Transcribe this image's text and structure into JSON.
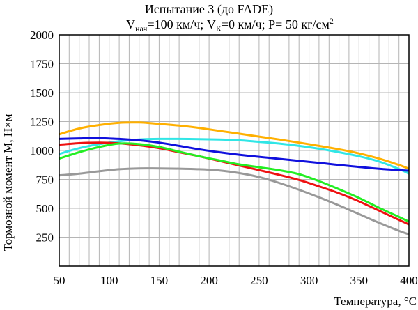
{
  "chart_data": {
    "type": "line",
    "title": "Испытание 3 (до FADE)",
    "subtitle": {
      "v_start_symbol": "V",
      "v_start_sub": "нач",
      "v_start_value": "=100 км/ч; ",
      "v_end_symbol": "V",
      "v_end_sub": "К",
      "v_end_value": "=0 км/ч; P= 50 кг/см",
      "pressure_sup": "2"
    },
    "xlabel": "Температура, °С",
    "ylabel": "Тормозной момент М, Н×м",
    "xlim": [
      50,
      400
    ],
    "ylim": [
      0,
      2000
    ],
    "x_ticks": [
      50,
      100,
      150,
      200,
      250,
      300,
      350,
      400
    ],
    "y_ticks": [
      250,
      500,
      750,
      1000,
      1250,
      1500,
      1750,
      2000
    ],
    "x_grid_step": 10,
    "grid": true,
    "series": [
      {
        "name": "orange",
        "color": "#ffb000",
        "points": [
          [
            50,
            1140
          ],
          [
            70,
            1190
          ],
          [
            90,
            1220
          ],
          [
            110,
            1240
          ],
          [
            130,
            1242
          ],
          [
            150,
            1230
          ],
          [
            170,
            1215
          ],
          [
            190,
            1195
          ],
          [
            210,
            1170
          ],
          [
            230,
            1145
          ],
          [
            250,
            1120
          ],
          [
            270,
            1095
          ],
          [
            290,
            1068
          ],
          [
            310,
            1040
          ],
          [
            330,
            1010
          ],
          [
            350,
            975
          ],
          [
            370,
            930
          ],
          [
            390,
            875
          ],
          [
            400,
            842
          ]
        ]
      },
      {
        "name": "cyan",
        "color": "#30e6e6",
        "points": [
          [
            50,
            970
          ],
          [
            70,
            1020
          ],
          [
            90,
            1055
          ],
          [
            110,
            1080
          ],
          [
            130,
            1095
          ],
          [
            150,
            1100
          ],
          [
            170,
            1100
          ],
          [
            190,
            1098
          ],
          [
            210,
            1095
          ],
          [
            230,
            1088
          ],
          [
            250,
            1075
          ],
          [
            270,
            1060
          ],
          [
            290,
            1040
          ],
          [
            310,
            1015
          ],
          [
            330,
            985
          ],
          [
            350,
            950
          ],
          [
            370,
            905
          ],
          [
            390,
            840
          ],
          [
            400,
            800
          ]
        ]
      },
      {
        "name": "blue",
        "color": "#1010dd",
        "points": [
          [
            50,
            1100
          ],
          [
            70,
            1105
          ],
          [
            90,
            1107
          ],
          [
            110,
            1100
          ],
          [
            130,
            1088
          ],
          [
            150,
            1068
          ],
          [
            170,
            1040
          ],
          [
            190,
            1010
          ],
          [
            210,
            985
          ],
          [
            230,
            963
          ],
          [
            250,
            945
          ],
          [
            270,
            928
          ],
          [
            290,
            910
          ],
          [
            310,
            893
          ],
          [
            330,
            875
          ],
          [
            350,
            858
          ],
          [
            370,
            842
          ],
          [
            390,
            830
          ],
          [
            400,
            825
          ]
        ]
      },
      {
        "name": "red",
        "color": "#ee1111",
        "points": [
          [
            50,
            1050
          ],
          [
            70,
            1063
          ],
          [
            90,
            1068
          ],
          [
            110,
            1062
          ],
          [
            130,
            1045
          ],
          [
            150,
            1020
          ],
          [
            170,
            985
          ],
          [
            190,
            950
          ],
          [
            210,
            910
          ],
          [
            230,
            870
          ],
          [
            250,
            830
          ],
          [
            270,
            790
          ],
          [
            290,
            745
          ],
          [
            310,
            690
          ],
          [
            330,
            630
          ],
          [
            350,
            560
          ],
          [
            370,
            480
          ],
          [
            390,
            400
          ],
          [
            400,
            360
          ]
        ]
      },
      {
        "name": "green",
        "color": "#22ee22",
        "points": [
          [
            50,
            930
          ],
          [
            70,
            985
          ],
          [
            90,
            1030
          ],
          [
            110,
            1060
          ],
          [
            130,
            1055
          ],
          [
            150,
            1030
          ],
          [
            170,
            990
          ],
          [
            190,
            950
          ],
          [
            210,
            915
          ],
          [
            230,
            880
          ],
          [
            250,
            855
          ],
          [
            270,
            830
          ],
          [
            290,
            795
          ],
          [
            310,
            735
          ],
          [
            330,
            665
          ],
          [
            350,
            590
          ],
          [
            370,
            505
          ],
          [
            390,
            425
          ],
          [
            400,
            385
          ]
        ]
      },
      {
        "name": "gray",
        "color": "#999999",
        "points": [
          [
            50,
            785
          ],
          [
            70,
            800
          ],
          [
            90,
            820
          ],
          [
            110,
            838
          ],
          [
            130,
            845
          ],
          [
            150,
            845
          ],
          [
            170,
            843
          ],
          [
            190,
            838
          ],
          [
            210,
            828
          ],
          [
            230,
            805
          ],
          [
            250,
            770
          ],
          [
            270,
            720
          ],
          [
            290,
            660
          ],
          [
            310,
            595
          ],
          [
            330,
            525
          ],
          [
            350,
            450
          ],
          [
            370,
            375
          ],
          [
            390,
            305
          ],
          [
            400,
            275
          ]
        ]
      }
    ]
  }
}
